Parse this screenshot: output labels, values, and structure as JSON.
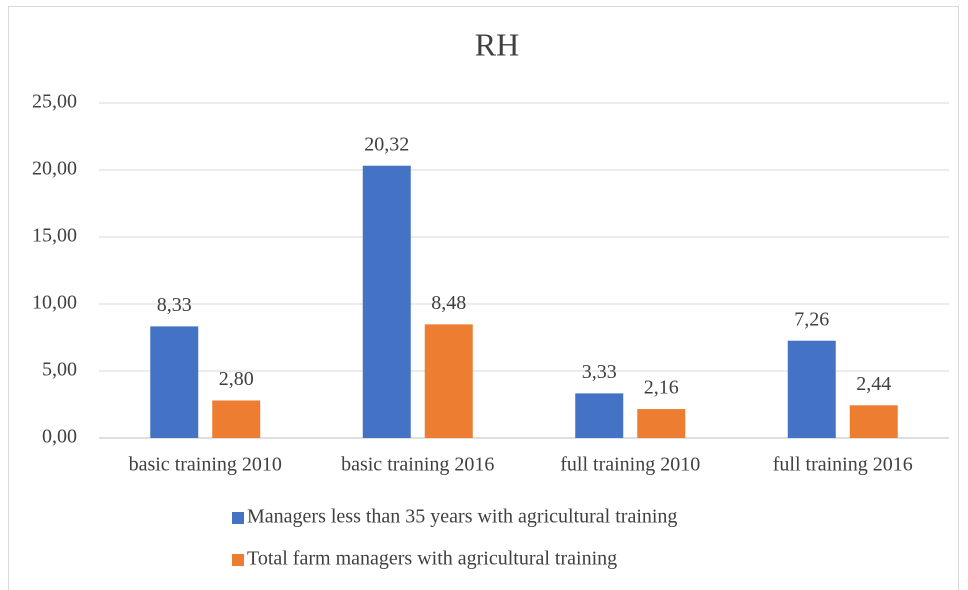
{
  "chart_data": {
    "type": "bar",
    "title": "RH",
    "categories": [
      "basic training 2010",
      "basic training 2016",
      "full training 2010",
      "full training 2016"
    ],
    "series": [
      {
        "name": "Managers less than 35 years with agricultural training",
        "color": "#4472c4",
        "values": [
          8.33,
          20.32,
          3.33,
          7.26
        ],
        "value_labels": [
          "8,33",
          "20,32",
          "3,33",
          "7,26"
        ]
      },
      {
        "name": "Total farm managers with agricultural training",
        "color": "#ed7d31",
        "values": [
          2.8,
          8.48,
          2.16,
          2.44
        ],
        "value_labels": [
          "2,80",
          "8,48",
          "2,16",
          "2,44"
        ]
      }
    ],
    "ylim": [
      0,
      25
    ],
    "yticks": [
      {
        "value": 0,
        "label": "0,00"
      },
      {
        "value": 5,
        "label": "5,00"
      },
      {
        "value": 10,
        "label": "10,00"
      },
      {
        "value": 15,
        "label": "15,00"
      },
      {
        "value": 20,
        "label": "20,00"
      },
      {
        "value": 25,
        "label": "25,00"
      }
    ],
    "grid": true,
    "legend": "bottom"
  }
}
